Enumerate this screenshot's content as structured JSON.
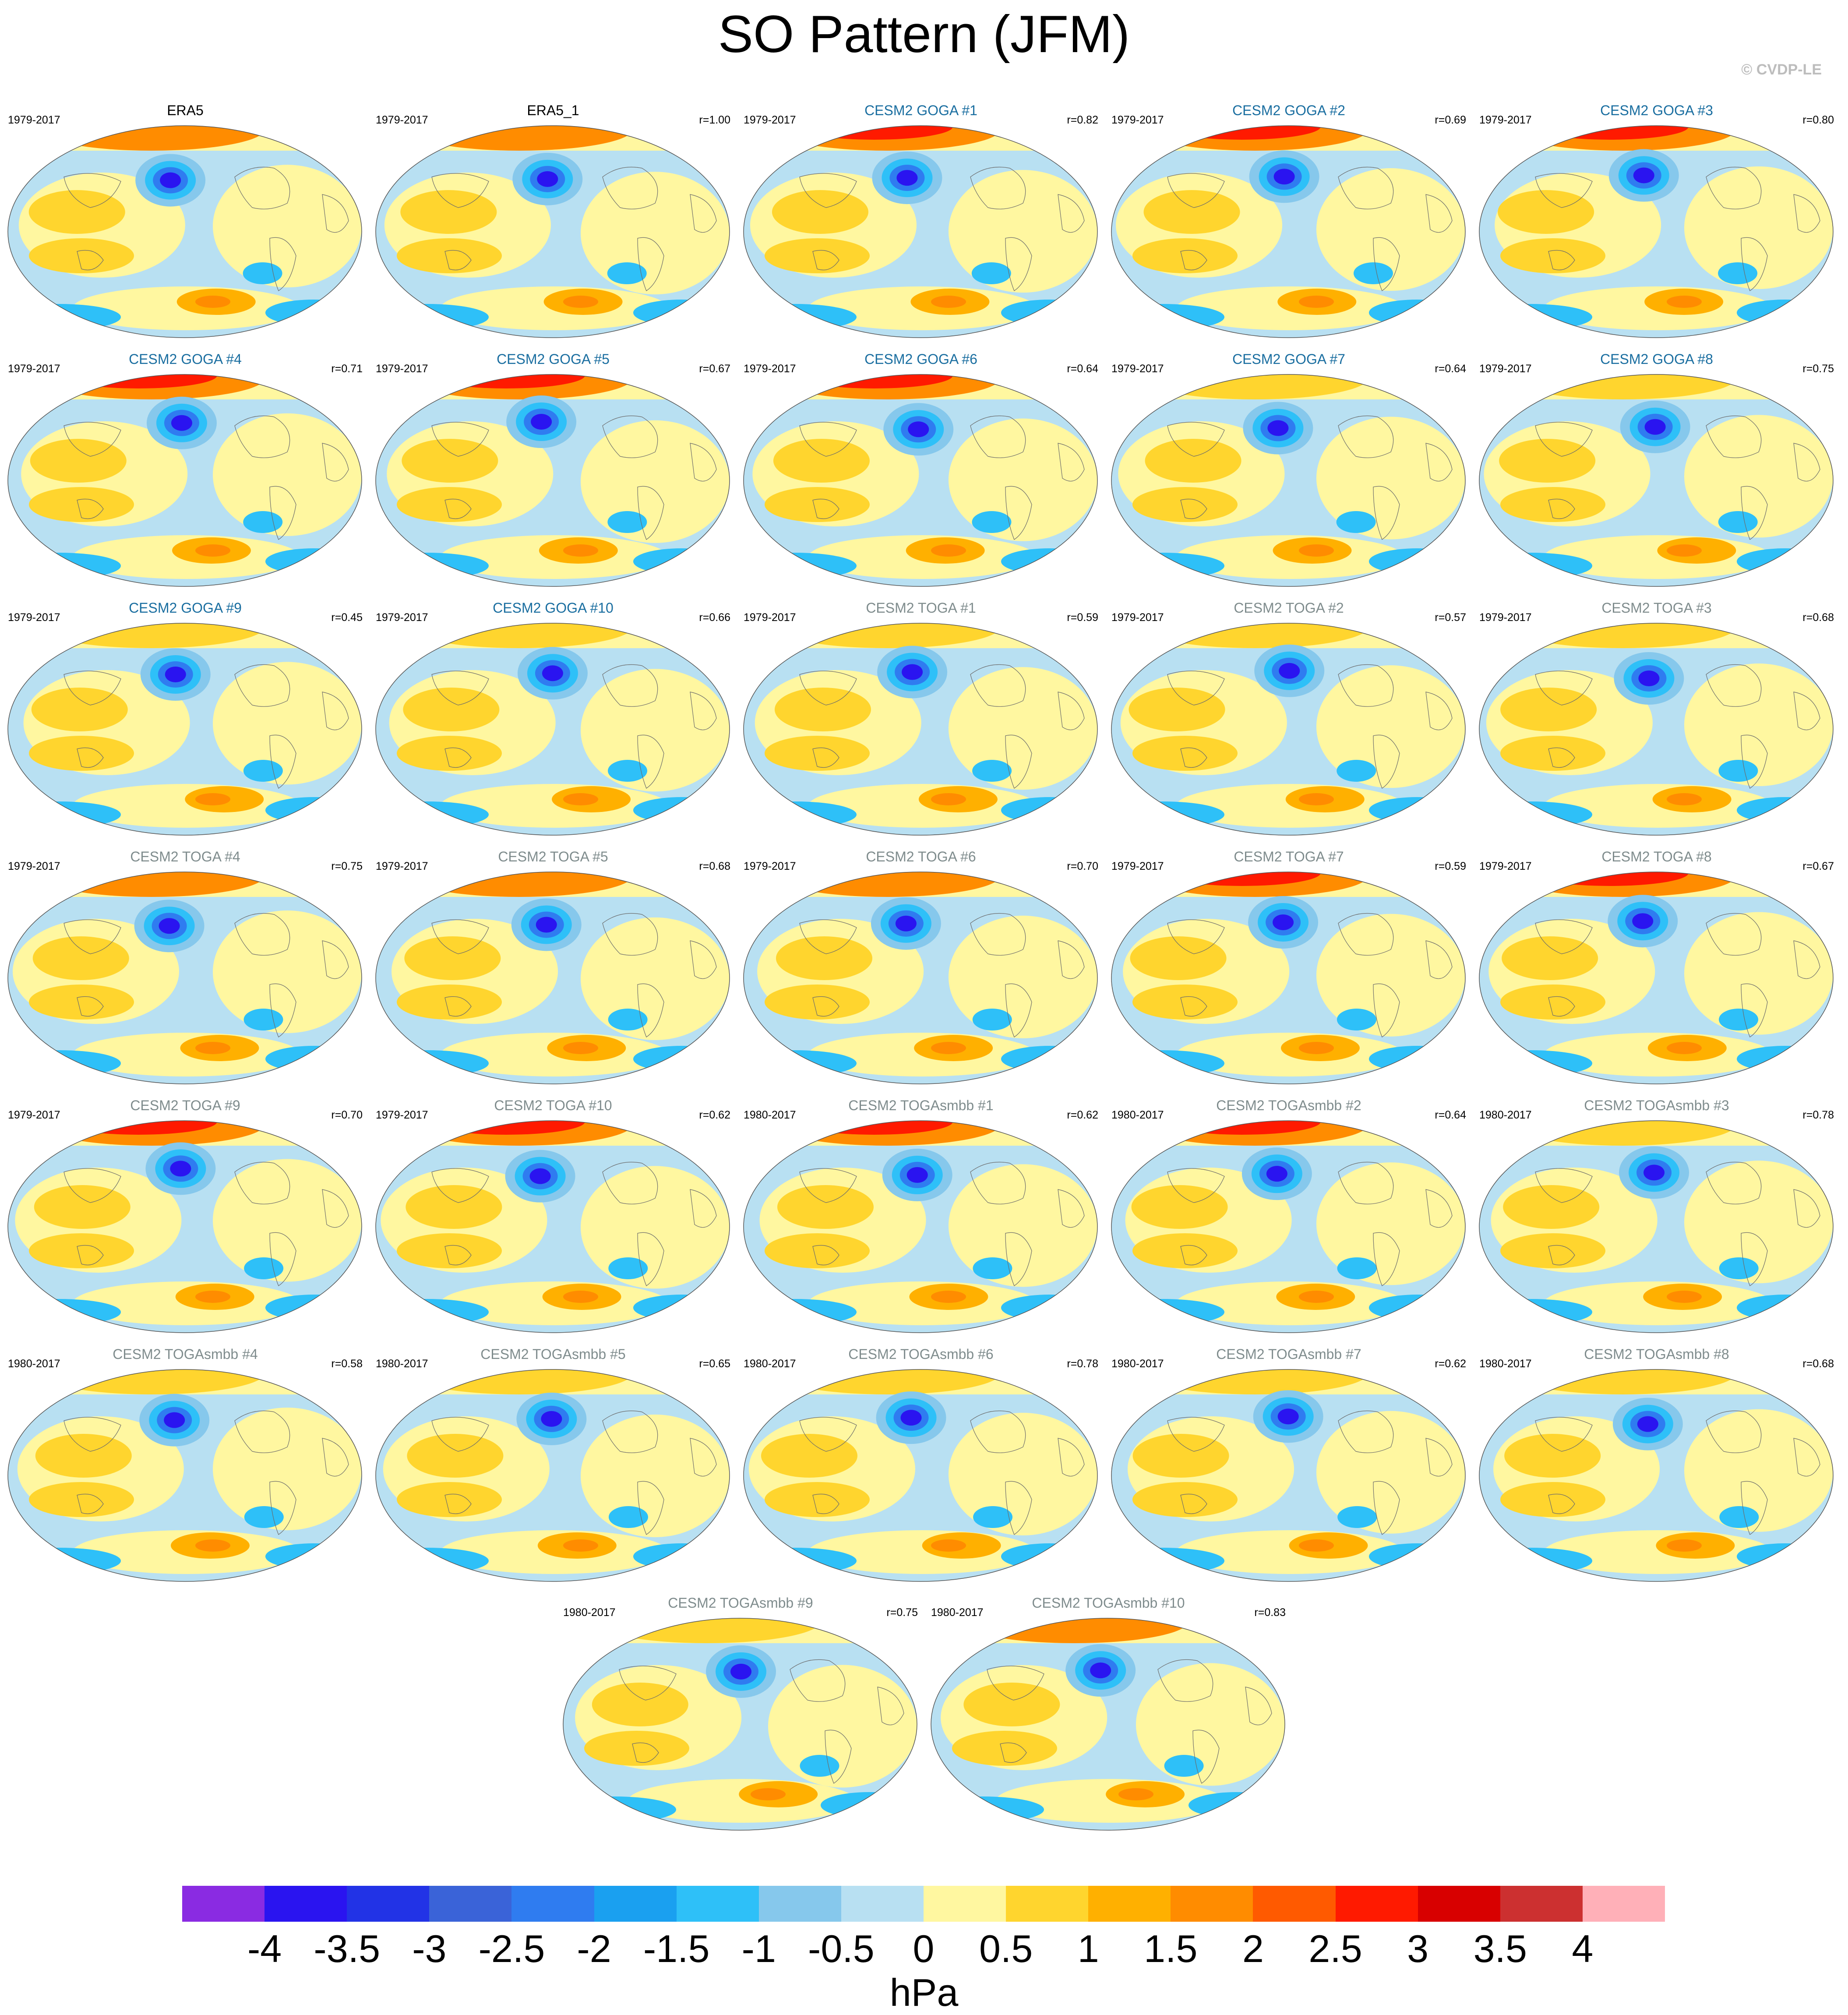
{
  "title": "SO Pattern (JFM)",
  "credit": "© CVDP-LE",
  "colors": {
    "obs_title": "#000000",
    "goga_title": "#1a6ea0",
    "toga_title": "#7f8c8d"
  },
  "panels": [
    {
      "label": "ERA5",
      "years": "1979-2017",
      "r": "",
      "group": "obs"
    },
    {
      "label": "ERA5_1",
      "years": "1979-2017",
      "r": "r=1.00",
      "group": "obs"
    },
    {
      "label": "CESM2 GOGA #1",
      "years": "1979-2017",
      "r": "r=0.82",
      "group": "goga"
    },
    {
      "label": "CESM2 GOGA #2",
      "years": "1979-2017",
      "r": "r=0.69",
      "group": "goga"
    },
    {
      "label": "CESM2 GOGA #3",
      "years": "1979-2017",
      "r": "r=0.80",
      "group": "goga"
    },
    {
      "label": "CESM2 GOGA #4",
      "years": "1979-2017",
      "r": "r=0.71",
      "group": "goga"
    },
    {
      "label": "CESM2 GOGA #5",
      "years": "1979-2017",
      "r": "r=0.67",
      "group": "goga"
    },
    {
      "label": "CESM2 GOGA #6",
      "years": "1979-2017",
      "r": "r=0.64",
      "group": "goga"
    },
    {
      "label": "CESM2 GOGA #7",
      "years": "1979-2017",
      "r": "r=0.64",
      "group": "goga"
    },
    {
      "label": "CESM2 GOGA #8",
      "years": "1979-2017",
      "r": "r=0.75",
      "group": "goga"
    },
    {
      "label": "CESM2 GOGA #9",
      "years": "1979-2017",
      "r": "r=0.45",
      "group": "goga"
    },
    {
      "label": "CESM2 GOGA #10",
      "years": "1979-2017",
      "r": "r=0.66",
      "group": "goga"
    },
    {
      "label": "CESM2 TOGA #1",
      "years": "1979-2017",
      "r": "r=0.59",
      "group": "toga"
    },
    {
      "label": "CESM2 TOGA #2",
      "years": "1979-2017",
      "r": "r=0.57",
      "group": "toga"
    },
    {
      "label": "CESM2 TOGA #3",
      "years": "1979-2017",
      "r": "r=0.68",
      "group": "toga"
    },
    {
      "label": "CESM2 TOGA #4",
      "years": "1979-2017",
      "r": "r=0.75",
      "group": "toga"
    },
    {
      "label": "CESM2 TOGA #5",
      "years": "1979-2017",
      "r": "r=0.68",
      "group": "toga"
    },
    {
      "label": "CESM2 TOGA #6",
      "years": "1979-2017",
      "r": "r=0.70",
      "group": "toga"
    },
    {
      "label": "CESM2 TOGA #7",
      "years": "1979-2017",
      "r": "r=0.59",
      "group": "toga"
    },
    {
      "label": "CESM2 TOGA #8",
      "years": "1979-2017",
      "r": "r=0.67",
      "group": "toga"
    },
    {
      "label": "CESM2 TOGA #9",
      "years": "1979-2017",
      "r": "r=0.70",
      "group": "toga"
    },
    {
      "label": "CESM2 TOGA #10",
      "years": "1979-2017",
      "r": "r=0.62",
      "group": "toga"
    },
    {
      "label": "CESM2 TOGAsmbb #1",
      "years": "1980-2017",
      "r": "r=0.62",
      "group": "toga"
    },
    {
      "label": "CESM2 TOGAsmbb #2",
      "years": "1980-2017",
      "r": "r=0.64",
      "group": "toga"
    },
    {
      "label": "CESM2 TOGAsmbb #3",
      "years": "1980-2017",
      "r": "r=0.78",
      "group": "toga"
    },
    {
      "label": "CESM2 TOGAsmbb #4",
      "years": "1980-2017",
      "r": "r=0.58",
      "group": "toga"
    },
    {
      "label": "CESM2 TOGAsmbb #5",
      "years": "1980-2017",
      "r": "r=0.65",
      "group": "toga"
    },
    {
      "label": "CESM2 TOGAsmbb #6",
      "years": "1980-2017",
      "r": "r=0.78",
      "group": "toga"
    },
    {
      "label": "CESM2 TOGAsmbb #7",
      "years": "1980-2017",
      "r": "r=0.62",
      "group": "toga"
    },
    {
      "label": "CESM2 TOGAsmbb #8",
      "years": "1980-2017",
      "r": "r=0.68",
      "group": "toga"
    },
    {
      "label": "CESM2 TOGAsmbb #9",
      "years": "1980-2017",
      "r": "r=0.75",
      "group": "toga"
    },
    {
      "label": "CESM2 TOGAsmbb #10",
      "years": "1980-2017",
      "r": "r=0.83",
      "group": "toga"
    }
  ],
  "colorbar": {
    "colors": [
      "#8a2be2",
      "#2a14f0",
      "#2233e6",
      "#3a63d8",
      "#2f7cf0",
      "#1aa0f0",
      "#2ec0f8",
      "#86c8ec",
      "#b8e0f2",
      "#fff7a0",
      "#ffd52e",
      "#ffb000",
      "#ff8c00",
      "#ff5a00",
      "#ff1a00",
      "#d80000",
      "#cc3030",
      "#ffb0b8"
    ],
    "ticks": [
      "-4",
      "-3.5",
      "-3",
      "-2.5",
      "-2",
      "-1.5",
      "-1",
      "-0.5",
      "0",
      "0.5",
      "1",
      "1.5",
      "2",
      "2.5",
      "3",
      "3.5",
      "4"
    ],
    "unit": "hPa"
  }
}
